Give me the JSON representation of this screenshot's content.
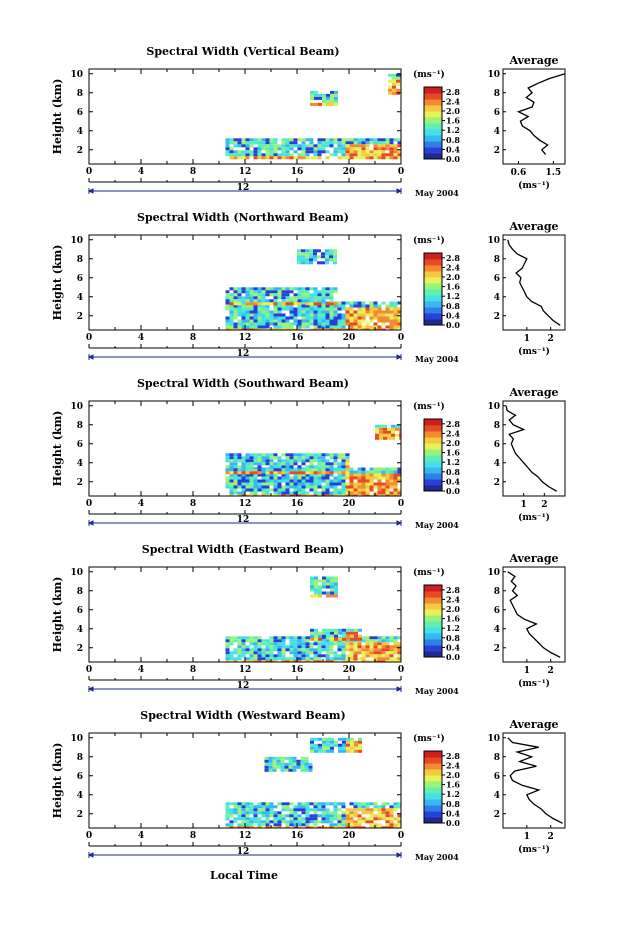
{
  "colors": {
    "scale": [
      "#1e2a8c",
      "#2a3fd8",
      "#2f7fe8",
      "#38b8f0",
      "#44e0e8",
      "#5ef0b0",
      "#9af27a",
      "#e6f25a",
      "#f7c940",
      "#f28a30",
      "#e84a26",
      "#cc1f1f"
    ],
    "data_colors": [
      "#2a3fd8",
      "#38b8f0",
      "#44e0e8",
      "#5ef0b0",
      "#9af27a",
      "#e6f25a",
      "#f7c940",
      "#f28a30",
      "#e84a26"
    ],
    "axis": "#000000",
    "background": "#ffffff"
  },
  "shared": {
    "x_ticks": [
      "0",
      "4",
      "8",
      "12",
      "16",
      "20",
      "0"
    ],
    "mid_label": "12",
    "date_label": "May 2004",
    "ylabel": "Height (km)",
    "y_ticks": [
      "2",
      "4",
      "6",
      "8",
      "10"
    ],
    "colorbar_unit": "(ms⁻¹)",
    "colorbar_ticks": [
      "0.0",
      "0.4",
      "0.8",
      "1.2",
      "1.6",
      "2.0",
      "2.4",
      "2.8"
    ],
    "avg_title": "Average",
    "avg_unit": "(ms⁻¹)",
    "xlabel": "Local Time"
  },
  "chart_data": [
    {
      "type": "heatmap",
      "title": "Spectral Width (Vertical Beam)",
      "xlim": [
        0,
        24
      ],
      "ylim": [
        0.5,
        10.5
      ],
      "clim": [
        0.0,
        3.0
      ],
      "data_start_hour": 10.5,
      "regions": [
        [
          1.0,
          3.2,
          10.5,
          24
        ],
        [
          6.8,
          8.2,
          17,
          19
        ],
        [
          8.0,
          10.0,
          23,
          24
        ]
      ],
      "average_profile": {
        "xlim": [
          0.2,
          1.8
        ],
        "x_ticks": [
          "0.6",
          "1.5"
        ],
        "heights": [
          1.5,
          2.0,
          2.5,
          3.0,
          3.5,
          4.0,
          4.5,
          5.0,
          5.5,
          6.0,
          6.5,
          7.0,
          7.5,
          8.0,
          8.5,
          9.0,
          9.5,
          10.0
        ],
        "values": [
          1.3,
          1.2,
          1.35,
          1.15,
          1.0,
          0.9,
          0.7,
          0.65,
          0.85,
          0.6,
          0.95,
          1.0,
          0.8,
          0.95,
          0.85,
          1.1,
          1.4,
          1.8
        ]
      }
    },
    {
      "type": "heatmap",
      "title": "Spectral Width (Northward Beam)",
      "xlim": [
        0,
        24
      ],
      "ylim": [
        0.5,
        10.5
      ],
      "clim": [
        0.0,
        3.0
      ],
      "data_start_hour": 10.5,
      "regions": [
        [
          0.5,
          3.5,
          10.5,
          24
        ],
        [
          3.3,
          5.0,
          10.5,
          19
        ],
        [
          7.5,
          9.0,
          16,
          19
        ]
      ],
      "average_profile": {
        "xlim": [
          0.0,
          2.6
        ],
        "x_ticks": [
          "1",
          "2"
        ],
        "heights": [
          1.0,
          1.5,
          2.0,
          2.5,
          3.0,
          3.5,
          4.0,
          4.5,
          5.0,
          5.5,
          6.0,
          6.5,
          7.0,
          7.5,
          8.0,
          8.5,
          9.0,
          9.5,
          10.0
        ],
        "values": [
          2.4,
          2.1,
          1.9,
          1.7,
          1.6,
          1.2,
          1.0,
          0.9,
          0.8,
          0.7,
          0.75,
          0.55,
          0.8,
          0.9,
          1.0,
          0.6,
          0.4,
          0.25,
          0.2
        ]
      }
    },
    {
      "type": "heatmap",
      "title": "Spectral Width (Southward Beam)",
      "xlim": [
        0,
        24
      ],
      "ylim": [
        0.5,
        10.5
      ],
      "clim": [
        0.0,
        3.0
      ],
      "data_start_hour": 10.5,
      "regions": [
        [
          0.5,
          3.5,
          10.5,
          24
        ],
        [
          3.0,
          5.0,
          10.5,
          20
        ],
        [
          6.5,
          8.0,
          22,
          24
        ]
      ],
      "average_profile": {
        "xlim": [
          0.0,
          3.0
        ],
        "x_ticks": [
          "1",
          "2"
        ],
        "heights": [
          1.0,
          1.5,
          2.0,
          2.5,
          3.0,
          3.5,
          4.0,
          4.5,
          5.0,
          5.5,
          6.0,
          6.5,
          7.0,
          7.5,
          8.0,
          8.5,
          9.0,
          9.5,
          10.0
        ],
        "values": [
          2.6,
          2.2,
          1.9,
          1.7,
          1.4,
          1.2,
          1.0,
          0.8,
          0.6,
          0.5,
          0.4,
          0.5,
          0.3,
          1.0,
          0.5,
          0.3,
          0.6,
          0.2,
          0.15
        ]
      }
    },
    {
      "type": "heatmap",
      "title": "Spectral Width (Eastward Beam)",
      "xlim": [
        0,
        24
      ],
      "ylim": [
        0.5,
        10.5
      ],
      "clim": [
        0.0,
        3.0
      ],
      "data_start_hour": 10.5,
      "regions": [
        [
          0.5,
          3.2,
          10.5,
          24
        ],
        [
          7.5,
          9.5,
          17,
          19
        ],
        [
          3.0,
          4.0,
          17,
          21
        ]
      ],
      "average_profile": {
        "xlim": [
          0.0,
          2.6
        ],
        "x_ticks": [
          "1",
          "2"
        ],
        "heights": [
          1.0,
          1.5,
          2.0,
          2.5,
          3.0,
          3.5,
          4.0,
          4.5,
          5.0,
          5.5,
          6.0,
          6.5,
          7.0,
          7.5,
          8.0,
          8.5,
          9.0,
          9.5,
          10.0
        ],
        "values": [
          2.4,
          2.0,
          1.7,
          1.5,
          1.3,
          1.1,
          1.0,
          1.4,
          0.9,
          0.6,
          0.5,
          0.4,
          0.3,
          0.6,
          0.4,
          0.55,
          0.35,
          0.5,
          0.2
        ]
      }
    },
    {
      "type": "heatmap",
      "title": "Spectral Width (Westward Beam)",
      "xlim": [
        0,
        24
      ],
      "ylim": [
        0.5,
        10.5
      ],
      "clim": [
        0.0,
        3.0
      ],
      "data_start_hour": 10.5,
      "regions": [
        [
          0.5,
          3.2,
          10.5,
          24
        ],
        [
          6.5,
          8.0,
          13.5,
          17
        ],
        [
          8.5,
          10.0,
          17,
          21
        ]
      ],
      "average_profile": {
        "xlim": [
          0.0,
          2.6
        ],
        "x_ticks": [
          "1",
          "2"
        ],
        "heights": [
          1.0,
          1.5,
          2.0,
          2.5,
          3.0,
          3.5,
          4.0,
          4.5,
          5.0,
          5.5,
          6.0,
          6.5,
          7.0,
          7.5,
          8.0,
          8.5,
          9.0,
          9.5,
          10.0
        ],
        "values": [
          2.5,
          2.1,
          1.8,
          1.6,
          1.3,
          1.1,
          1.0,
          1.5,
          0.8,
          0.4,
          0.3,
          0.5,
          1.4,
          0.7,
          1.2,
          0.6,
          1.5,
          0.4,
          0.2
        ]
      }
    }
  ]
}
